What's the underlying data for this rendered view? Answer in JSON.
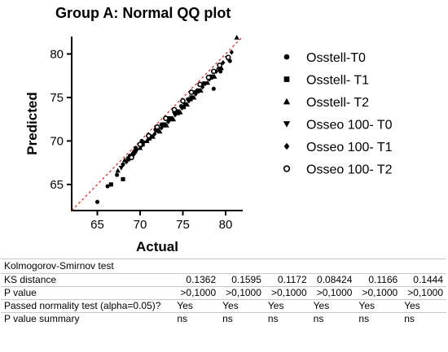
{
  "title": "Group A: Normal QQ plot",
  "chart_data": {
    "type": "scatter",
    "title": "Group A: Normal QQ plot",
    "xlabel": "Actual",
    "ylabel": "Predicted",
    "xlim": [
      62,
      82
    ],
    "ylim": [
      62,
      82
    ],
    "xticks": [
      65,
      70,
      75,
      80
    ],
    "yticks": [
      65,
      70,
      75,
      80
    ],
    "grid": false,
    "legend_position": "right",
    "reference_line": {
      "from": [
        62,
        62
      ],
      "to": [
        82,
        82
      ],
      "color": "#e0241b",
      "style": "dashed"
    },
    "series": [
      {
        "name": "Osstell-T0",
        "marker": "circle-filled",
        "points": [
          [
            65.0,
            63.0
          ],
          [
            66.2,
            64.8
          ],
          [
            67.3,
            66.1
          ],
          [
            68.0,
            67.3
          ],
          [
            68.8,
            68.3
          ],
          [
            69.5,
            69.2
          ],
          [
            70.2,
            70.0
          ],
          [
            71.0,
            70.7
          ],
          [
            71.8,
            71.3
          ],
          [
            72.5,
            71.9
          ],
          [
            73.3,
            72.6
          ],
          [
            74.0,
            73.3
          ],
          [
            74.8,
            74.0
          ],
          [
            75.6,
            74.8
          ],
          [
            76.4,
            75.6
          ],
          [
            77.2,
            76.4
          ],
          [
            78.0,
            77.2
          ],
          [
            78.6,
            76.0
          ],
          [
            79.4,
            78.0
          ],
          [
            80.5,
            79.2
          ]
        ]
      },
      {
        "name": "Osstell- T1",
        "marker": "square-filled",
        "points": [
          [
            66.6,
            65.0
          ],
          [
            68.0,
            65.6
          ],
          [
            68.6,
            67.9
          ],
          [
            69.4,
            68.8
          ],
          [
            70.3,
            69.6
          ],
          [
            71.1,
            70.3
          ],
          [
            72.0,
            71.2
          ],
          [
            72.8,
            71.8
          ],
          [
            73.6,
            72.5
          ],
          [
            74.4,
            73.2
          ],
          [
            75.1,
            73.9
          ],
          [
            75.9,
            74.8
          ],
          [
            76.7,
            75.7
          ],
          [
            77.5,
            76.6
          ],
          [
            78.3,
            77.3
          ]
        ]
      },
      {
        "name": "Osstell- T2",
        "marker": "triangle-filled",
        "points": [
          [
            67.4,
            66.6
          ],
          [
            68.2,
            67.8
          ],
          [
            69.1,
            68.6
          ],
          [
            70.0,
            69.2
          ],
          [
            70.8,
            70.0
          ],
          [
            71.5,
            70.5
          ],
          [
            72.3,
            71.1
          ],
          [
            73.1,
            71.8
          ],
          [
            73.9,
            72.5
          ],
          [
            74.7,
            73.3
          ],
          [
            75.5,
            74.2
          ],
          [
            76.3,
            75.0
          ],
          [
            77.1,
            75.8
          ],
          [
            77.9,
            76.7
          ],
          [
            78.7,
            77.4
          ],
          [
            79.5,
            78.4
          ],
          [
            81.3,
            81.9
          ]
        ]
      },
      {
        "name": "Osseo 100- T0",
        "marker": "triangle-down-filled",
        "points": [
          [
            67.8,
            66.9
          ],
          [
            68.7,
            68.0
          ],
          [
            69.6,
            68.9
          ],
          [
            70.4,
            69.8
          ],
          [
            71.2,
            70.5
          ],
          [
            72.0,
            71.2
          ],
          [
            72.8,
            71.9
          ],
          [
            73.6,
            72.6
          ],
          [
            74.4,
            73.4
          ],
          [
            75.2,
            74.2
          ],
          [
            76.0,
            75.0
          ],
          [
            76.8,
            75.8
          ],
          [
            77.6,
            76.6
          ],
          [
            78.4,
            77.4
          ],
          [
            79.2,
            78.2
          ],
          [
            80.2,
            79.5
          ]
        ]
      },
      {
        "name": "Osseo 100- T1",
        "marker": "diamond-filled",
        "points": [
          [
            68.4,
            67.6
          ],
          [
            69.3,
            68.5
          ],
          [
            70.1,
            69.4
          ],
          [
            70.9,
            70.1
          ],
          [
            71.7,
            70.8
          ],
          [
            72.5,
            71.5
          ],
          [
            73.3,
            72.2
          ],
          [
            74.1,
            73.0
          ],
          [
            74.9,
            73.8
          ],
          [
            75.7,
            74.6
          ],
          [
            76.5,
            75.4
          ],
          [
            77.3,
            76.2
          ],
          [
            78.1,
            77.1
          ],
          [
            78.9,
            78.0
          ],
          [
            79.7,
            79.0
          ],
          [
            80.7,
            80.2
          ]
        ]
      },
      {
        "name": "Osseo 100- T2",
        "marker": "circle-open",
        "points": [
          [
            69.0,
            68.1
          ],
          [
            70.0,
            69.6
          ],
          [
            71.0,
            70.6
          ],
          [
            72.0,
            71.6
          ],
          [
            73.0,
            72.6
          ],
          [
            74.0,
            73.6
          ],
          [
            75.0,
            74.6
          ],
          [
            76.0,
            75.6
          ],
          [
            77.0,
            76.5
          ],
          [
            78.0,
            77.3
          ],
          [
            78.6,
            78.0
          ],
          [
            79.3,
            78.7
          ],
          [
            80.3,
            79.6
          ]
        ]
      }
    ]
  },
  "table": {
    "header": "Kolmogorov-Smirnov test",
    "rows": [
      {
        "label": "KS distance",
        "align": "right",
        "values": [
          "0.1362",
          "0.1595",
          "0.1172",
          "0.08424",
          "0.1166",
          "0.1444"
        ]
      },
      {
        "label": "P value",
        "align": "right",
        "values": [
          ">0,1000",
          ">0,1000",
          ">0,1000",
          ">0,1000",
          ">0,1000",
          ">0,1000"
        ]
      },
      {
        "label": "Passed normality test (alpha=0.05)?",
        "align": "left",
        "values": [
          "Yes",
          "Yes",
          "Yes",
          "Yes",
          "Yes",
          "Yes"
        ]
      },
      {
        "label": "P value summary",
        "align": "left",
        "values": [
          "ns",
          "ns",
          "ns",
          "ns",
          "ns",
          "ns"
        ]
      }
    ]
  }
}
